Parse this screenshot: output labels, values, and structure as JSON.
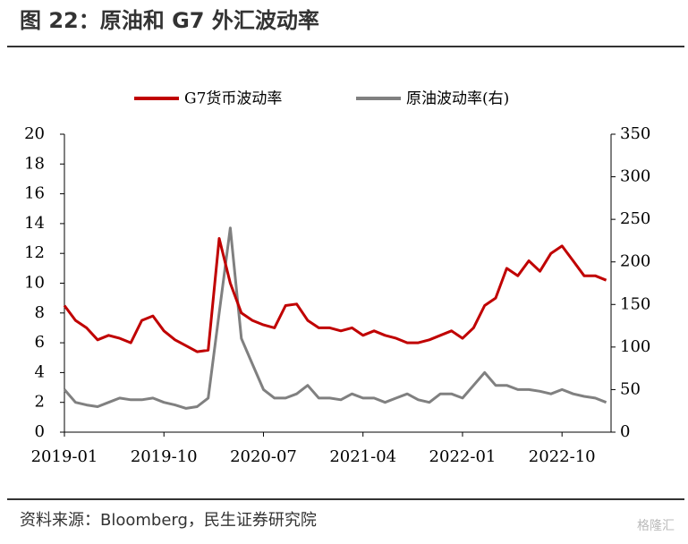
{
  "chart_data": {
    "type": "line",
    "title": "图 22：原油和 G7 外汇波动率",
    "source": "资料来源：Bloomberg，民生证券研究院",
    "watermark": "格隆汇",
    "x": [
      "2019-01",
      "2019-02",
      "2019-03",
      "2019-04",
      "2019-05",
      "2019-06",
      "2019-07",
      "2019-08",
      "2019-09",
      "2019-10",
      "2019-11",
      "2019-12",
      "2020-01",
      "2020-02",
      "2020-03",
      "2020-04",
      "2020-05",
      "2020-06",
      "2020-07",
      "2020-08",
      "2020-09",
      "2020-10",
      "2020-11",
      "2020-12",
      "2021-01",
      "2021-02",
      "2021-03",
      "2021-04",
      "2021-05",
      "2021-06",
      "2021-07",
      "2021-08",
      "2021-09",
      "2021-10",
      "2021-11",
      "2021-12",
      "2022-01",
      "2022-02",
      "2022-03",
      "2022-04",
      "2022-05",
      "2022-06",
      "2022-07",
      "2022-08",
      "2022-09",
      "2022-10",
      "2022-11",
      "2022-12",
      "2023-01",
      "2023-02"
    ],
    "xticks": [
      "2019-01",
      "2019-10",
      "2020-07",
      "2021-04",
      "2022-01",
      "2022-10"
    ],
    "series": [
      {
        "name": "G7货币波动率",
        "color": "#c00000",
        "axis": "y",
        "values": [
          8.5,
          7.5,
          7,
          6.2,
          6.5,
          6.3,
          6,
          7.5,
          7.8,
          6.8,
          6.2,
          5.8,
          5.4,
          5.5,
          13,
          10,
          8,
          7.5,
          7.2,
          7,
          8.5,
          8.6,
          7.5,
          7,
          7,
          6.8,
          7,
          6.5,
          6.8,
          6.5,
          6.3,
          6,
          6,
          6.2,
          6.5,
          6.8,
          6.3,
          7,
          8.5,
          9,
          11,
          10.5,
          11.5,
          10.8,
          12,
          12.5,
          11.5,
          10.5,
          10.5,
          10.2
        ]
      },
      {
        "name": "原油波动率(右)",
        "color": "#808080",
        "axis": "y2",
        "values": [
          50,
          35,
          32,
          30,
          35,
          40,
          38,
          38,
          40,
          35,
          32,
          28,
          30,
          40,
          140,
          240,
          110,
          80,
          50,
          40,
          40,
          45,
          55,
          40,
          40,
          38,
          45,
          40,
          40,
          35,
          40,
          45,
          38,
          35,
          45,
          45,
          40,
          55,
          70,
          55,
          55,
          50,
          50,
          48,
          45,
          50,
          45,
          42,
          40,
          35
        ]
      }
    ],
    "ylim": [
      0,
      20
    ],
    "yticks": [
      0,
      2,
      4,
      6,
      8,
      10,
      12,
      14,
      16,
      18,
      20
    ],
    "y2lim": [
      0,
      350
    ],
    "y2ticks": [
      0,
      50,
      100,
      150,
      200,
      250,
      300,
      350
    ]
  }
}
